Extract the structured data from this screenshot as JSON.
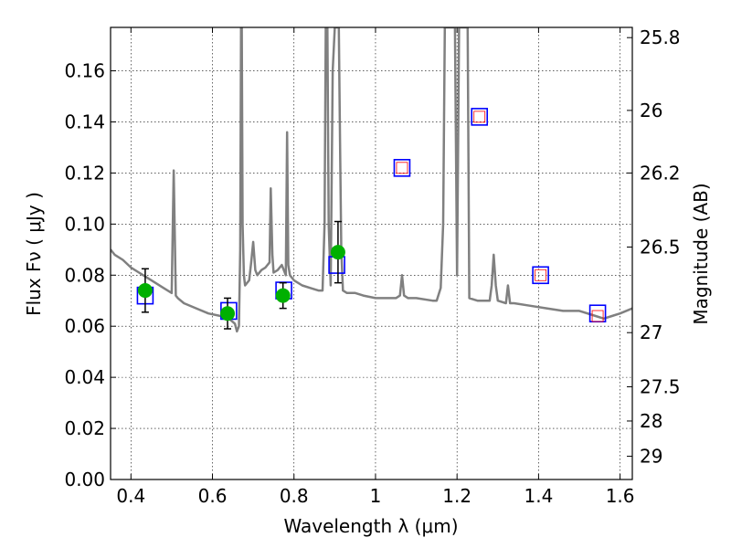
{
  "chart_data": {
    "type": "scatter",
    "title": "",
    "xlabel": "Wavelength  λ (μm)",
    "ylabel": "Flux  Fν  ( μJy )",
    "y2label": "Magnitude (AB)",
    "xlim": [
      0.35,
      1.63
    ],
    "ylim": [
      0.0,
      0.177
    ],
    "grid": true,
    "x_ticks": [
      0.4,
      0.6,
      0.8,
      1.0,
      1.2,
      1.4,
      1.6
    ],
    "x_tick_labels": [
      "0.4",
      "0.6",
      "0.8",
      "1",
      "1.2",
      "1.4",
      "1.6"
    ],
    "y_ticks": [
      0.0,
      0.02,
      0.04,
      0.06,
      0.08,
      0.1,
      0.12,
      0.14,
      0.16
    ],
    "y_tick_labels": [
      "0.00",
      "0.02",
      "0.04",
      "0.06",
      "0.08",
      "0.10",
      "0.12",
      "0.14",
      "0.16"
    ],
    "mag_ticks": [
      {
        "label": "25.8",
        "flux": 0.173
      },
      {
        "label": "26",
        "flux": 0.1445
      },
      {
        "label": "26.2",
        "flux": 0.12
      },
      {
        "label": "26.5",
        "flux": 0.091
      },
      {
        "label": "27",
        "flux": 0.0575
      },
      {
        "label": "27.5",
        "flux": 0.0363
      },
      {
        "label": "28",
        "flux": 0.0229
      },
      {
        "label": "29",
        "flux": 0.0091
      }
    ],
    "series": [
      {
        "kind": "model-spectrum",
        "color": "#808080",
        "x": [
          0.35,
          0.36,
          0.38,
          0.4,
          0.42,
          0.44,
          0.46,
          0.48,
          0.5,
          0.505,
          0.51,
          0.515,
          0.53,
          0.56,
          0.59,
          0.62,
          0.64,
          0.655,
          0.66,
          0.665,
          0.668,
          0.67,
          0.672,
          0.674,
          0.677,
          0.68,
          0.69,
          0.695,
          0.7,
          0.705,
          0.71,
          0.72,
          0.73,
          0.74,
          0.743,
          0.747,
          0.75,
          0.76,
          0.77,
          0.78,
          0.783,
          0.786,
          0.79,
          0.8,
          0.82,
          0.84,
          0.86,
          0.87,
          0.875,
          0.878,
          0.882,
          0.885,
          0.89,
          0.895,
          0.9,
          0.903,
          0.906,
          0.91,
          0.913,
          0.916,
          0.92,
          0.93,
          0.95,
          0.97,
          1.0,
          1.03,
          1.05,
          1.06,
          1.065,
          1.07,
          1.08,
          1.1,
          1.14,
          1.15,
          1.16,
          1.166,
          1.17,
          1.18,
          1.19,
          1.195,
          1.2,
          1.205,
          1.21,
          1.22,
          1.226,
          1.23,
          1.25,
          1.28,
          1.285,
          1.29,
          1.295,
          1.3,
          1.32,
          1.325,
          1.33,
          1.34,
          1.38,
          1.42,
          1.46,
          1.5,
          1.54,
          1.56,
          1.58,
          1.6,
          1.63
        ],
        "y": [
          0.09,
          0.088,
          0.086,
          0.083,
          0.081,
          0.079,
          0.077,
          0.075,
          0.073,
          0.121,
          0.072,
          0.071,
          0.069,
          0.067,
          0.065,
          0.064,
          0.063,
          0.061,
          0.058,
          0.06,
          0.09,
          0.177,
          0.177,
          0.1,
          0.08,
          0.076,
          0.078,
          0.085,
          0.093,
          0.082,
          0.08,
          0.082,
          0.083,
          0.085,
          0.114,
          0.088,
          0.081,
          0.082,
          0.084,
          0.08,
          0.136,
          0.084,
          0.08,
          0.078,
          0.076,
          0.075,
          0.074,
          0.074,
          0.1,
          0.177,
          0.177,
          0.1,
          0.076,
          0.16,
          0.177,
          0.177,
          0.177,
          0.177,
          0.13,
          0.09,
          0.074,
          0.073,
          0.073,
          0.072,
          0.071,
          0.071,
          0.071,
          0.072,
          0.08,
          0.072,
          0.071,
          0.071,
          0.07,
          0.07,
          0.075,
          0.1,
          0.177,
          0.177,
          0.177,
          0.177,
          0.08,
          0.177,
          0.177,
          0.177,
          0.177,
          0.071,
          0.07,
          0.07,
          0.076,
          0.088,
          0.076,
          0.07,
          0.069,
          0.076,
          0.069,
          0.069,
          0.068,
          0.067,
          0.066,
          0.066,
          0.064,
          0.063,
          0.064,
          0.065,
          0.067
        ]
      },
      {
        "kind": "model-photometry",
        "name": "",
        "color": "#0000ff",
        "marker": "open-square",
        "x": [
          0.435,
          0.64,
          0.775,
          0.905,
          1.065,
          1.255,
          1.405,
          1.545
        ],
        "y": [
          0.072,
          0.066,
          0.074,
          0.084,
          0.122,
          0.142,
          0.08,
          0.065
        ]
      },
      {
        "kind": "upper-limit-photometry",
        "name": "",
        "color": "#ff0000",
        "marker": "open-square-small",
        "x": [
          1.065,
          1.255,
          1.405,
          1.545
        ],
        "y": [
          0.122,
          0.142,
          0.08,
          0.064
        ]
      },
      {
        "kind": "observed-photometry",
        "name": "",
        "color": "#00b000",
        "marker": "filled-circle",
        "x": [
          0.435,
          0.637,
          0.773,
          0.908
        ],
        "y": [
          0.074,
          0.065,
          0.072,
          0.089
        ],
        "yerr_low": [
          0.0085,
          0.006,
          0.005,
          0.012
        ],
        "yerr_high": [
          0.0085,
          0.006,
          0.005,
          0.012
        ]
      }
    ]
  }
}
